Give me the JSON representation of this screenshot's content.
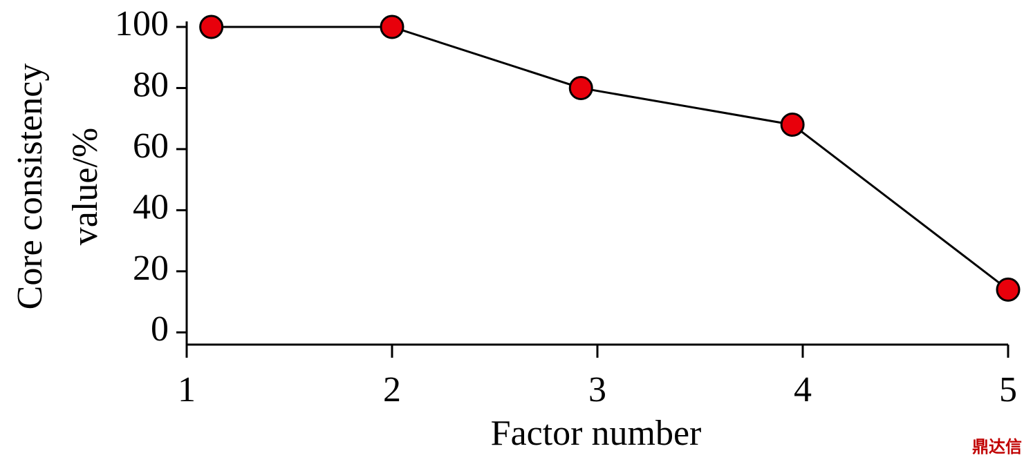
{
  "chart_data": {
    "type": "line",
    "xlabel": "Factor number",
    "ylabel": [
      "Core consistency",
      "value/%"
    ],
    "x": [
      1.12,
      2,
      2.92,
      3.95,
      5
    ],
    "series": [
      {
        "name": "Core consistency",
        "color": "#e8000b",
        "values": [
          100,
          100,
          80,
          68,
          14
        ]
      }
    ],
    "xlim": [
      1,
      5
    ],
    "xticks": [
      1,
      2,
      3,
      4,
      5
    ],
    "ylim": [
      -4,
      100
    ],
    "yticks": [
      0,
      20,
      40,
      60,
      80,
      100
    ],
    "grid": false,
    "watermark": "鼎达信"
  }
}
